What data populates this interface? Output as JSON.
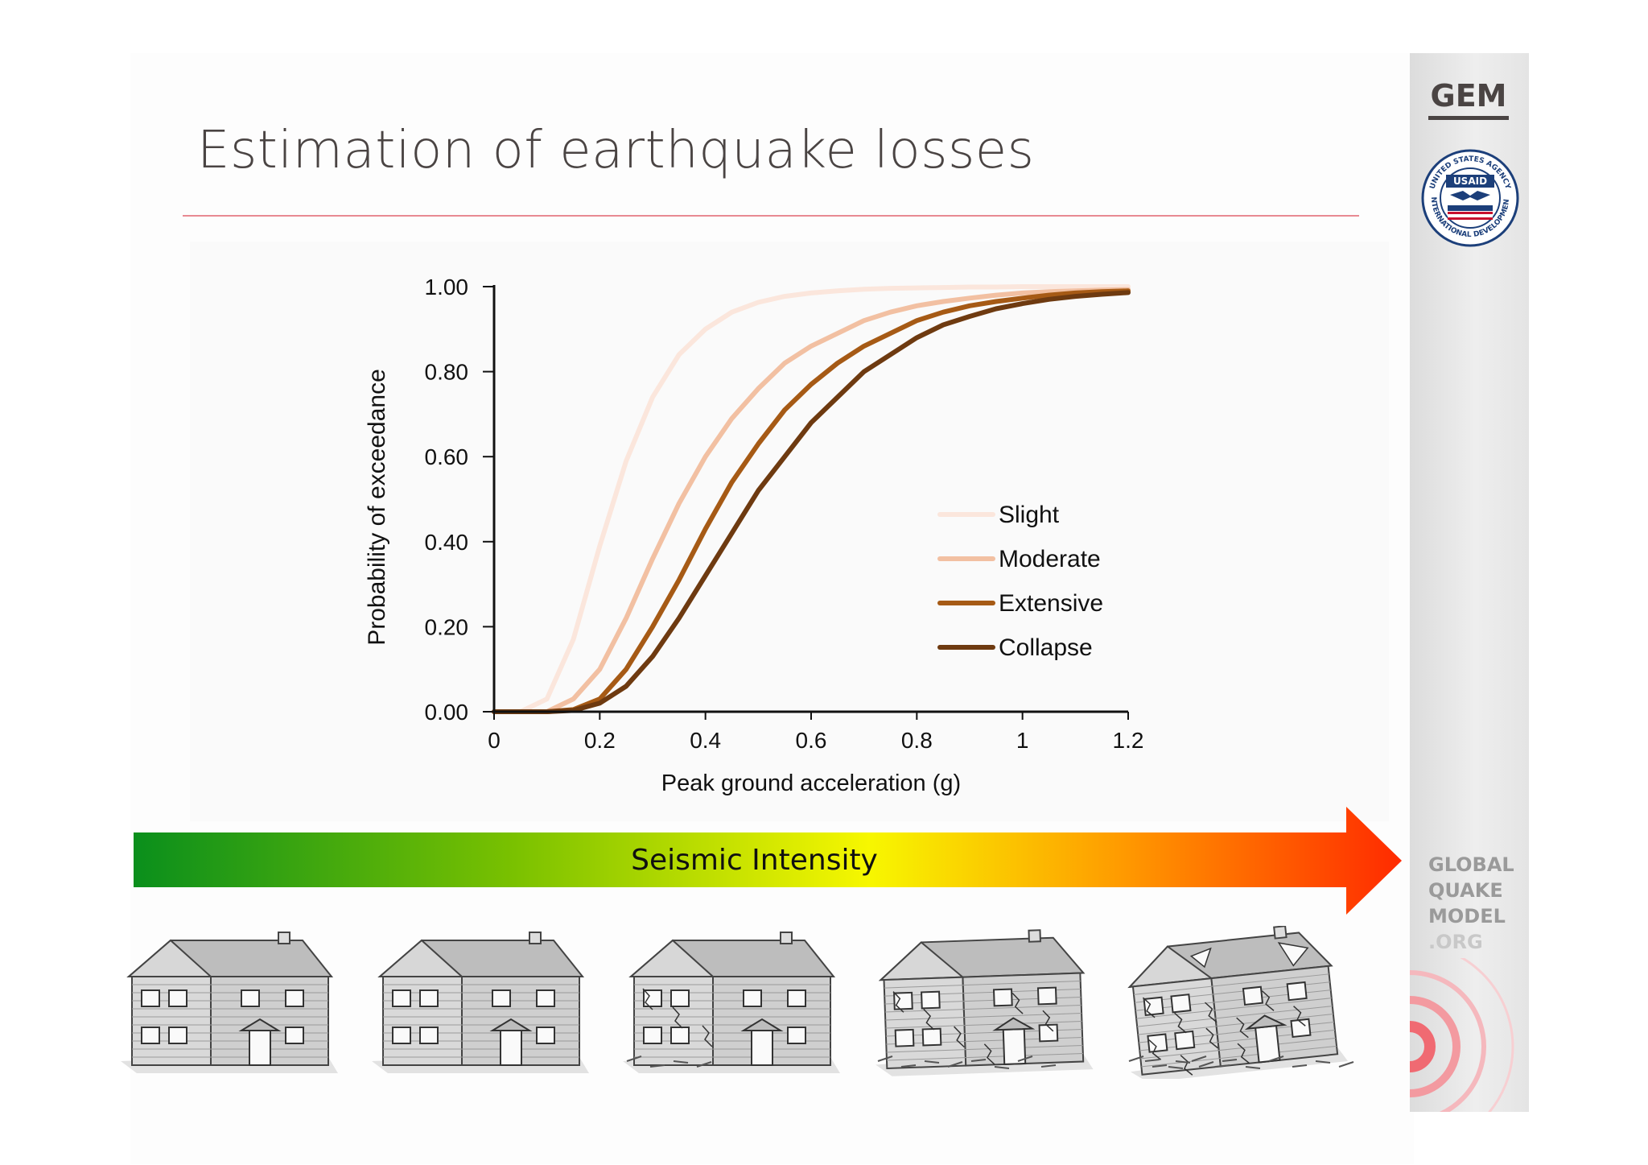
{
  "slide": {
    "title": "Estimation of earthquake losses"
  },
  "logos": {
    "gem": "GEM",
    "usaid": {
      "center": "USAID",
      "ring_text": "UNITED STATES AGENCY • INTERNATIONAL DEVELOPMENT"
    },
    "global_quake_model": [
      "GLOBAL",
      "QUAKE",
      "MODEL",
      ".ORG"
    ]
  },
  "arrow": {
    "label": "Seismic Intensity",
    "gradient_colors": [
      "#0a8f1c",
      "#7ac100",
      "#f7f700",
      "#ff9a00",
      "#ff2a00"
    ]
  },
  "houses": {
    "count": 5,
    "icon": "house-damage-illustration"
  },
  "chart_data": {
    "type": "line",
    "xlabel": "Peak ground acceleration (g)",
    "ylabel": "Probability of exceedance",
    "xlim": [
      0,
      1.2
    ],
    "ylim": [
      0,
      1
    ],
    "xticks": [
      "0",
      "0.2",
      "0.4",
      "0.6",
      "0.8",
      "1",
      "1.2"
    ],
    "yticks": [
      "0.00",
      "0.20",
      "0.40",
      "0.60",
      "0.80",
      "1.00"
    ],
    "legend_position": "center-right",
    "grid": false,
    "x": [
      0,
      0.05,
      0.1,
      0.15,
      0.2,
      0.25,
      0.3,
      0.35,
      0.4,
      0.45,
      0.5,
      0.55,
      0.6,
      0.65,
      0.7,
      0.75,
      0.8,
      0.85,
      0.9,
      0.95,
      1.0,
      1.05,
      1.1,
      1.15,
      1.2
    ],
    "series": [
      {
        "name": "Slight",
        "color": "#fbe6dc",
        "values": [
          0.0,
          0.0,
          0.03,
          0.17,
          0.39,
          0.59,
          0.74,
          0.84,
          0.9,
          0.94,
          0.963,
          0.977,
          0.985,
          0.99,
          0.994,
          0.996,
          0.997,
          0.998,
          0.999,
          0.999,
          1.0,
          1.0,
          1.0,
          1.0,
          1.0
        ]
      },
      {
        "name": "Moderate",
        "color": "#f2c0a2",
        "values": [
          0.0,
          0.0,
          0.0,
          0.03,
          0.1,
          0.22,
          0.36,
          0.49,
          0.6,
          0.69,
          0.76,
          0.82,
          0.86,
          0.89,
          0.92,
          0.94,
          0.955,
          0.965,
          0.973,
          0.98,
          0.985,
          0.988,
          0.99,
          0.992,
          0.993
        ]
      },
      {
        "name": "Extensive",
        "color": "#a65a15",
        "values": [
          0.0,
          0.0,
          0.0,
          0.005,
          0.03,
          0.1,
          0.2,
          0.31,
          0.43,
          0.54,
          0.63,
          0.71,
          0.77,
          0.82,
          0.86,
          0.89,
          0.92,
          0.94,
          0.955,
          0.965,
          0.973,
          0.98,
          0.985,
          0.988,
          0.99
        ]
      },
      {
        "name": "Collapse",
        "color": "#6e3a10",
        "values": [
          0.0,
          0.0,
          0.0,
          0.003,
          0.02,
          0.06,
          0.13,
          0.22,
          0.32,
          0.42,
          0.52,
          0.6,
          0.68,
          0.74,
          0.8,
          0.84,
          0.88,
          0.91,
          0.93,
          0.948,
          0.96,
          0.97,
          0.977,
          0.982,
          0.986
        ]
      }
    ]
  }
}
